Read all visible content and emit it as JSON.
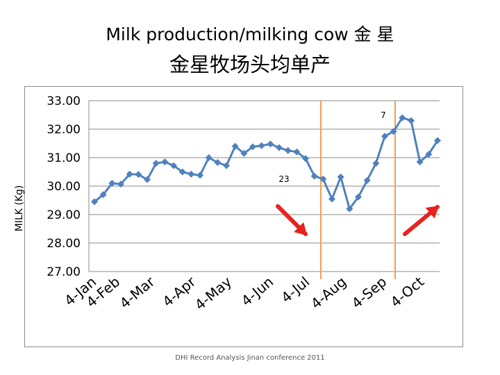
{
  "page": {
    "title_line1": "Milk production/milking cow  金   星",
    "title_line2": "金星牧场头均单产",
    "footer": "DHI Record Analysis Jinan conference 2011"
  },
  "chart_data": {
    "type": "line",
    "ylabel": "MILK (Kg)",
    "xlabel": "",
    "ylim": [
      27.0,
      33.0
    ],
    "yticks": [
      "27.00",
      "28.00",
      "29.00",
      "30.00",
      "31.00",
      "32.00",
      "33.00"
    ],
    "grid": true,
    "xtick_labels": [
      "4-Jan",
      "4-Feb",
      "4-Mar",
      "4-Apr",
      "4-May",
      "4-Jun",
      "4-Jul",
      "4-Aug",
      "4-Sep",
      "4-Oct"
    ],
    "series": [
      {
        "color": "#4f81bd",
        "values": [
          29.45,
          29.7,
          30.1,
          30.07,
          30.42,
          30.41,
          30.23,
          30.8,
          30.85,
          30.72,
          30.5,
          30.42,
          30.38,
          31.0,
          30.83,
          30.72,
          31.4,
          31.15,
          31.38,
          31.42,
          31.48,
          31.35,
          31.25,
          31.2,
          30.97,
          30.35,
          30.25,
          29.55,
          30.32,
          29.2,
          29.62,
          30.2,
          30.8,
          31.75,
          31.92,
          32.4,
          32.3,
          30.85,
          31.12,
          31.6
        ]
      }
    ],
    "vertical_lines": [
      {
        "color": "#f0a050",
        "label": "23"
      },
      {
        "color": "#f0a050",
        "label": "7"
      }
    ],
    "annotations": [
      {
        "text": "23"
      },
      {
        "text": "7"
      }
    ],
    "arrows": [
      {
        "direction": "down-right",
        "color": "#e8221e"
      },
      {
        "direction": "up-right",
        "color": "#e8221e"
      }
    ]
  }
}
